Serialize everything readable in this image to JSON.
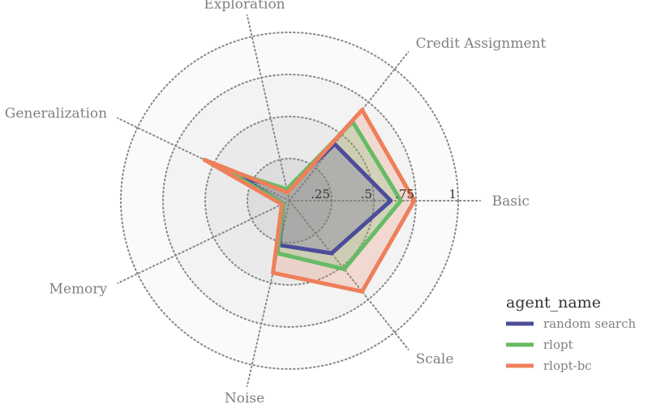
{
  "chart_data": {
    "type": "radar",
    "axes": [
      "Basic",
      "Credit Assignment",
      "Exploration",
      "Generalization",
      "Memory",
      "Noise",
      "Scale"
    ],
    "rlim": [
      0,
      1
    ],
    "rticks": [
      0.25,
      0.5,
      0.75,
      1
    ],
    "rtick_labels": [
      ".25",
      ".5",
      ".75",
      "1"
    ],
    "grid": true,
    "legend": {
      "title": "agent_name",
      "position": "bottom-right"
    },
    "series": [
      {
        "name": "random search",
        "color": "#4C4C9A",
        "values": [
          0.6,
          0.43,
          0.07,
          0.33,
          0.04,
          0.27,
          0.4
        ]
      },
      {
        "name": "rlopt",
        "color": "#66BB66",
        "values": [
          0.66,
          0.6,
          0.07,
          0.43,
          0.04,
          0.32,
          0.52
        ]
      },
      {
        "name": "rlopt-bc",
        "color": "#EE7F5A",
        "values": [
          0.74,
          0.69,
          0.05,
          0.56,
          0.05,
          0.44,
          0.69
        ]
      }
    ]
  }
}
